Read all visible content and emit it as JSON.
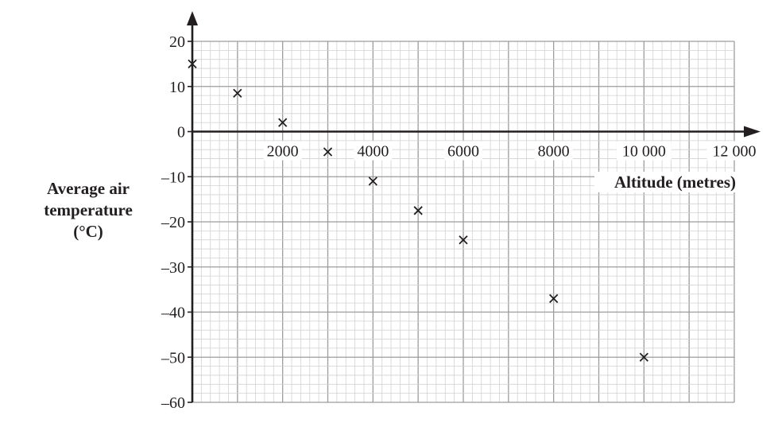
{
  "chart_data": {
    "type": "scatter",
    "marker": "×",
    "x": [
      0,
      1000,
      2000,
      3000,
      4000,
      5000,
      6000,
      8000,
      10000
    ],
    "y": [
      15,
      8.5,
      2,
      -4.5,
      -11,
      -17.5,
      -24,
      -37,
      -50
    ],
    "xlabel": "Altitude (metres)",
    "ylabel_lines": [
      "Average air",
      "temperature",
      "(°C)"
    ],
    "xticks": [
      2000,
      4000,
      6000,
      8000,
      10000,
      12000
    ],
    "xtick_labels": [
      "2000",
      "4000",
      "6000",
      "8000",
      "10 000",
      "12 000"
    ],
    "yticks": [
      20,
      10,
      0,
      -10,
      -20,
      -30,
      -40,
      -50,
      -60
    ],
    "ytick_labels": [
      "20",
      "10",
      "0",
      "–10",
      "–20",
      "–30",
      "–40",
      "–50",
      "–60"
    ],
    "xlim": [
      0,
      12000
    ],
    "ylim": [
      -60,
      20
    ],
    "grid": true,
    "colors": {
      "major_grid": "#9d9c9c",
      "minor_grid": "#d3d2d2",
      "axis": "#231f20",
      "marker": "#231f20"
    }
  }
}
